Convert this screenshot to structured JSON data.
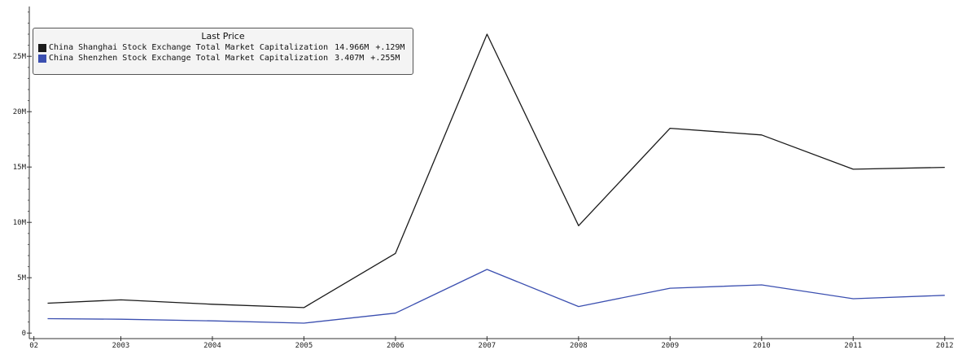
{
  "chart_data": {
    "type": "line",
    "title": "",
    "xlabel": "",
    "ylabel": "",
    "x": [
      2002.2,
      2003,
      2004,
      2005,
      2006,
      2007,
      2008,
      2009,
      2010,
      2011,
      2012
    ],
    "x_tick_labels": [
      "02",
      "2003",
      "2004",
      "2005",
      "2006",
      "2007",
      "2008",
      "2009",
      "2010",
      "2011",
      "2012"
    ],
    "y_tick_labels": [
      "0",
      "5M",
      "10M",
      "15M",
      "20M",
      "25M"
    ],
    "y_ticks": [
      0,
      5,
      10,
      15,
      20,
      25
    ],
    "xlim": [
      2002,
      2012.1
    ],
    "ylim": [
      -0.5,
      29.5
    ],
    "grid": false,
    "legend_position": "top-left",
    "legend_title": "Last Price",
    "series": [
      {
        "name": "China Shanghai Stock Exchange Total Market Capitalization",
        "last_value": "14.966M",
        "change": "+.129M",
        "color": "#1a1a1a",
        "values": [
          2.7,
          3.0,
          2.6,
          2.3,
          7.2,
          27.0,
          9.7,
          18.5,
          17.9,
          14.8,
          14.97
        ]
      },
      {
        "name": "China Shenzhen Stock Exchange Total Market Capitalization",
        "last_value": "3.407M",
        "change": "+.255M",
        "color": "#3b4fb0",
        "values": [
          1.3,
          1.25,
          1.1,
          0.9,
          1.8,
          5.75,
          2.4,
          4.05,
          4.35,
          3.1,
          3.41
        ]
      }
    ]
  }
}
